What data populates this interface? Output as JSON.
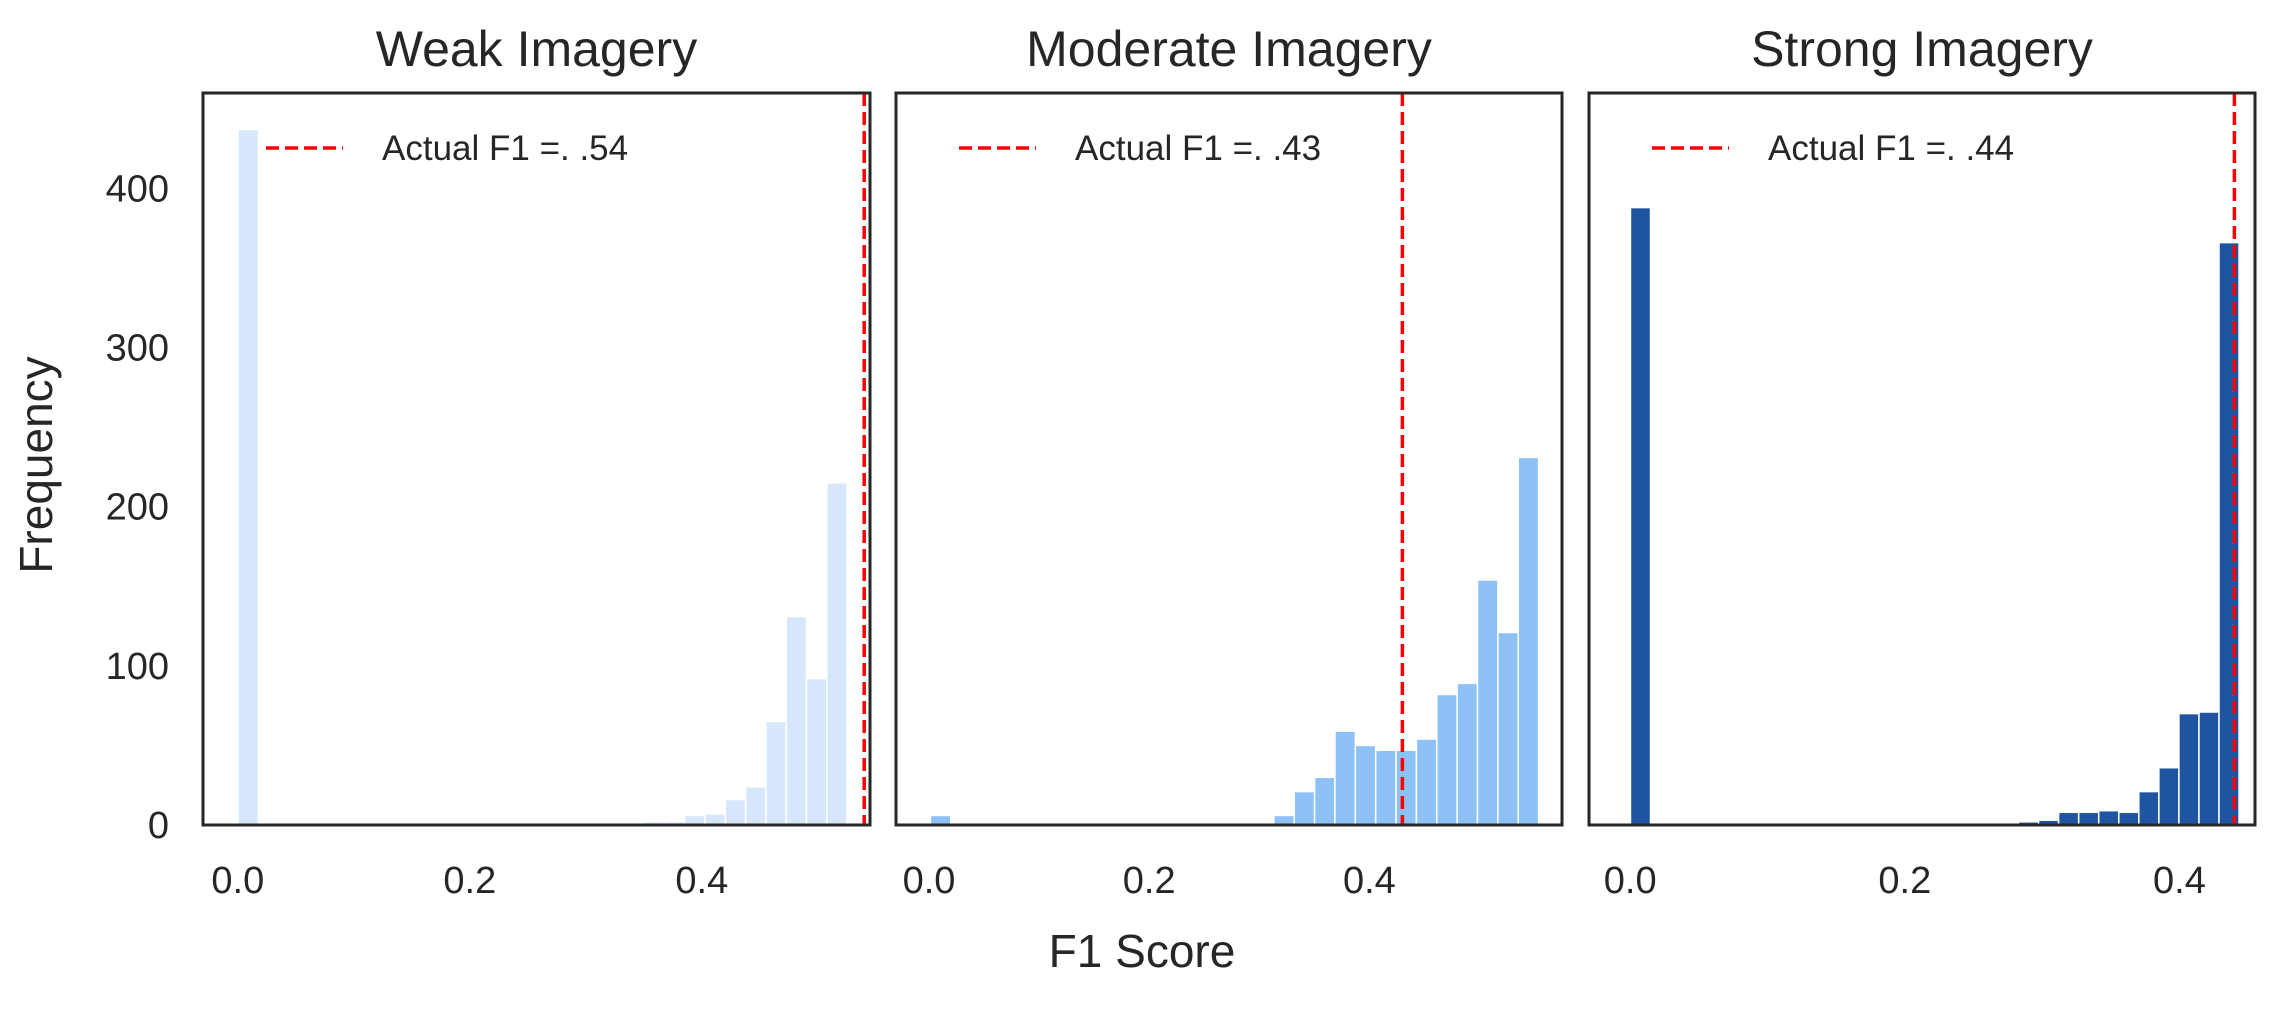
{
  "figure": {
    "xlabel": "F1 Score",
    "ylabel": "Frequency"
  },
  "chart_data": [
    {
      "type": "bar",
      "title": "Weak Imagery",
      "color": "#d6e6fb",
      "xlim": [
        -0.03,
        0.545
      ],
      "ylim": [
        0,
        460
      ],
      "xticks": [
        0.0,
        0.2,
        0.4
      ],
      "xtick_labels": [
        "0.0",
        "0.2",
        "0.4"
      ],
      "yticks": [
        0,
        100,
        200,
        300,
        400
      ],
      "ytick_labels": [
        "0",
        "100",
        "200",
        "300",
        "400"
      ],
      "bin_width": 0.0175,
      "bins": [
        {
          "x": 0.009,
          "value": 437
        },
        {
          "x": 0.359,
          "value": 2
        },
        {
          "x": 0.3765,
          "value": 2
        },
        {
          "x": 0.394,
          "value": 6
        },
        {
          "x": 0.4115,
          "value": 7
        },
        {
          "x": 0.429,
          "value": 16
        },
        {
          "x": 0.4465,
          "value": 24
        },
        {
          "x": 0.464,
          "value": 65
        },
        {
          "x": 0.4815,
          "value": 131
        },
        {
          "x": 0.499,
          "value": 92
        },
        {
          "x": 0.5165,
          "value": 215
        }
      ],
      "reference_line": {
        "x": 0.54,
        "color": "#ff0000",
        "label": "Actual F1 =. .54"
      },
      "legend_position": "upper-left"
    },
    {
      "type": "bar",
      "title": "Moderate Imagery",
      "color": "#8ec1f5",
      "xlim": [
        -0.03,
        0.575
      ],
      "ylim": [
        0,
        460
      ],
      "xticks": [
        0.0,
        0.2,
        0.4
      ],
      "xtick_labels": [
        "0.0",
        "0.2",
        "0.4"
      ],
      "yticks": [
        0,
        100,
        200,
        300,
        400
      ],
      "ytick_labels": [],
      "bin_width": 0.0185,
      "bins": [
        {
          "x": 0.0105,
          "value": 6
        },
        {
          "x": 0.3225,
          "value": 6
        },
        {
          "x": 0.341,
          "value": 21
        },
        {
          "x": 0.3595,
          "value": 30
        },
        {
          "x": 0.378,
          "value": 59
        },
        {
          "x": 0.3965,
          "value": 50
        },
        {
          "x": 0.415,
          "value": 47
        },
        {
          "x": 0.4335,
          "value": 47
        },
        {
          "x": 0.452,
          "value": 54
        },
        {
          "x": 0.4705,
          "value": 82
        },
        {
          "x": 0.489,
          "value": 89
        },
        {
          "x": 0.5075,
          "value": 154
        },
        {
          "x": 0.526,
          "value": 121
        },
        {
          "x": 0.5445,
          "value": 231
        }
      ],
      "reference_line": {
        "x": 0.43,
        "color": "#ff0000",
        "label": "Actual F1 =. .43"
      },
      "legend_position": "upper-left"
    },
    {
      "type": "bar",
      "title": "Strong Imagery",
      "color": "#1f55a0",
      "xlim": [
        -0.03,
        0.455
      ],
      "ylim": [
        0,
        460
      ],
      "xticks": [
        0.0,
        0.2,
        0.4
      ],
      "xtick_labels": [
        "0.0",
        "0.2",
        "0.4"
      ],
      "yticks": [
        0,
        100,
        200,
        300,
        400
      ],
      "ytick_labels": [],
      "bin_width": 0.0146,
      "bins": [
        {
          "x": 0.0075,
          "value": 388
        },
        {
          "x": 0.2755,
          "value": 1
        },
        {
          "x": 0.2901,
          "value": 2
        },
        {
          "x": 0.3047,
          "value": 3
        },
        {
          "x": 0.3193,
          "value": 8
        },
        {
          "x": 0.3339,
          "value": 8
        },
        {
          "x": 0.3485,
          "value": 9
        },
        {
          "x": 0.3631,
          "value": 8
        },
        {
          "x": 0.3777,
          "value": 21
        },
        {
          "x": 0.3923,
          "value": 36
        },
        {
          "x": 0.4069,
          "value": 70
        },
        {
          "x": 0.4215,
          "value": 71
        },
        {
          "x": 0.4361,
          "value": 366
        }
      ],
      "reference_line": {
        "x": 0.44,
        "color": "#ff0000",
        "label": "Actual F1 =. .44"
      },
      "legend_position": "upper-left"
    }
  ]
}
